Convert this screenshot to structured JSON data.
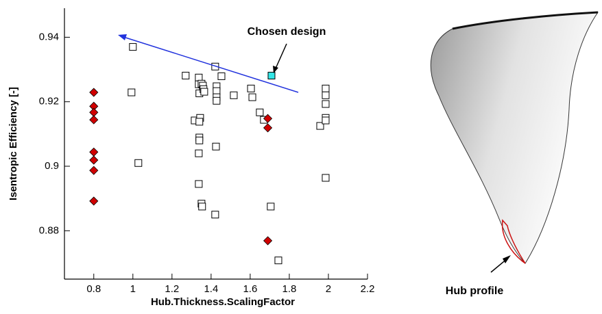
{
  "chart_data": {
    "type": "scatter",
    "x_label": "Hub.Thickness.ScalingFactor",
    "y_label": "Isentropic Efficiency [-]",
    "xlim": [
      0.65,
      2.2
    ],
    "ylim": [
      0.865,
      0.949
    ],
    "xticks": [
      0.8,
      1,
      1.2,
      1.4,
      1.6,
      1.8,
      2,
      2.2
    ],
    "yticks": [
      0.88,
      0.9,
      0.92,
      0.94
    ],
    "series": [
      {
        "marker": "square",
        "color": "#ffffff",
        "x": [
          1.0,
          0.993,
          1.028,
          1.27,
          1.316,
          1.337,
          1.337,
          1.34,
          1.344,
          1.34,
          1.34,
          1.34,
          1.337,
          1.337,
          1.351,
          1.354,
          1.351,
          1.358,
          1.361,
          1.365,
          1.421,
          1.428,
          1.428,
          1.428,
          1.428,
          1.453,
          1.425,
          1.421,
          1.516,
          1.604,
          1.611,
          1.649,
          1.67,
          1.705,
          1.744,
          1.958,
          1.986,
          1.986,
          1.986,
          1.986,
          1.986,
          1.986
        ],
        "values": [
          0.937,
          0.9229,
          0.901,
          0.9281,
          0.9142,
          0.9275,
          0.9254,
          0.9226,
          0.915,
          0.9138,
          0.9089,
          0.908,
          0.904,
          0.8945,
          0.8884,
          0.8875,
          0.9256,
          0.925,
          0.9239,
          0.9231,
          0.9309,
          0.9248,
          0.9233,
          0.9214,
          0.9203,
          0.9279,
          0.9061,
          0.885,
          0.922,
          0.9241,
          0.9214,
          0.9167,
          0.9144,
          0.8875,
          0.8708,
          0.9125,
          0.9241,
          0.922,
          0.9193,
          0.915,
          0.9142,
          0.8964
        ]
      },
      {
        "marker": "diamond",
        "color": "#d00000",
        "x": [
          0.8,
          0.8,
          0.8,
          0.8,
          0.8,
          0.8,
          0.8,
          0.8,
          1.69,
          1.69,
          1.69
        ],
        "values": [
          0.9229,
          0.9186,
          0.9167,
          0.9144,
          0.9044,
          0.9019,
          0.8987,
          0.8892,
          0.9148,
          0.9119,
          0.8769
        ]
      },
      {
        "marker": "square",
        "color": "#33e6e6",
        "x": [
          1.709
        ],
        "values": [
          0.9281
        ]
      }
    ],
    "annotations": [
      "Chosen design",
      "Hub profile"
    ]
  }
}
